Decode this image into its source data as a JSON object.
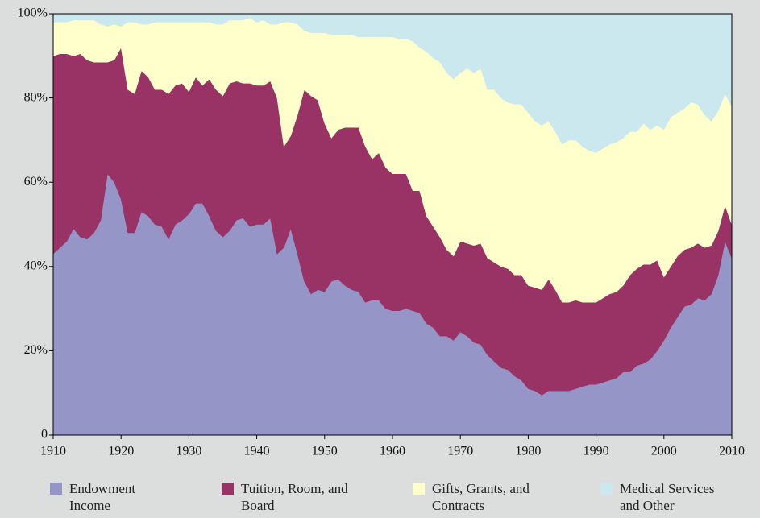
{
  "chart_data": {
    "type": "stacked_area",
    "x": [
      1910,
      1911,
      1912,
      1913,
      1914,
      1915,
      1916,
      1917,
      1918,
      1919,
      1920,
      1921,
      1922,
      1923,
      1924,
      1925,
      1926,
      1927,
      1928,
      1929,
      1930,
      1931,
      1932,
      1933,
      1934,
      1935,
      1936,
      1937,
      1938,
      1939,
      1940,
      1941,
      1942,
      1943,
      1944,
      1945,
      1946,
      1947,
      1948,
      1949,
      1950,
      1951,
      1952,
      1953,
      1954,
      1955,
      1956,
      1957,
      1958,
      1959,
      1960,
      1961,
      1962,
      1963,
      1964,
      1965,
      1966,
      1967,
      1968,
      1969,
      1970,
      1971,
      1972,
      1973,
      1974,
      1975,
      1976,
      1977,
      1978,
      1979,
      1980,
      1981,
      1982,
      1983,
      1984,
      1985,
      1986,
      1987,
      1988,
      1989,
      1990,
      1991,
      1992,
      1993,
      1994,
      1995,
      1996,
      1997,
      1998,
      1999,
      2000,
      2001,
      2002,
      2003,
      2004,
      2005,
      2006,
      2007,
      2008,
      2009,
      2010
    ],
    "series": [
      {
        "name": "Endowment Income",
        "color": "#9595c7",
        "values": [
          43,
          44.5,
          46,
          49,
          47,
          46.5,
          48,
          51,
          62,
          60,
          56,
          48,
          48,
          53,
          52,
          50,
          49.5,
          46.5,
          50,
          51,
          52.5,
          55,
          55,
          52,
          48.5,
          47,
          48.5,
          51,
          51.5,
          49.5,
          50,
          50,
          51.5,
          43,
          44.5,
          49,
          43,
          36.5,
          33.5,
          34.5,
          34,
          36.5,
          37,
          35.5,
          34.5,
          34,
          31.5,
          32,
          32,
          30,
          29.5,
          29.5,
          30,
          29.5,
          29,
          26.5,
          25.5,
          23.5,
          23.5,
          22.5,
          24.5,
          23.5,
          22,
          21.5,
          19,
          17.5,
          16,
          15.5,
          14,
          13,
          11,
          10.5,
          9.5,
          10.5,
          10.5,
          10.5,
          10.5,
          11,
          11.5,
          12,
          12,
          12.5,
          13,
          13.5,
          15,
          15,
          16.5,
          17,
          18,
          20,
          22.5,
          25.5,
          28,
          30.5,
          31,
          32.5,
          32,
          33.5,
          38,
          46,
          42
        ]
      },
      {
        "name": "Tuition, Room, and Board",
        "color": "#993366",
        "values": [
          47,
          46,
          44.5,
          41,
          43.5,
          42.5,
          40.5,
          37.5,
          26.5,
          29,
          36,
          34,
          33,
          33.5,
          33,
          32,
          32.5,
          34.5,
          33,
          32.5,
          29,
          30,
          28,
          32.5,
          33.5,
          33.5,
          35,
          33,
          32,
          34,
          33,
          33,
          32.5,
          37,
          24,
          22,
          33,
          45.5,
          47,
          45,
          40,
          34,
          35.5,
          37.5,
          38.5,
          39,
          37,
          33.5,
          35,
          33.5,
          32.5,
          32.5,
          32,
          28.5,
          29,
          25.5,
          24,
          23.5,
          20.5,
          20,
          21.5,
          22,
          23,
          24,
          23,
          23.5,
          24,
          24,
          24,
          25,
          24.5,
          24.5,
          25,
          26.5,
          24,
          21,
          21,
          21,
          20,
          19.5,
          19.5,
          20,
          20.5,
          20.5,
          20.5,
          23,
          23,
          23.5,
          22.5,
          21.5,
          15,
          14.5,
          14.5,
          13.5,
          13.5,
          13,
          12.5,
          11.5,
          10.5,
          8.5,
          8
        ]
      },
      {
        "name": "Gifts, Grants, and Contracts",
        "color": "#ffffcc",
        "values": [
          8,
          7.5,
          7.5,
          8.5,
          8,
          9.5,
          10,
          9,
          8.5,
          8.5,
          5,
          16,
          17,
          11,
          12.5,
          16,
          16,
          17,
          15,
          14.5,
          16.5,
          13,
          15,
          13.5,
          15.5,
          17,
          15,
          14.5,
          15,
          15.5,
          15,
          15.5,
          13.5,
          17.5,
          29.5,
          27,
          21.5,
          14,
          15,
          16,
          21.5,
          24.5,
          22.5,
          22,
          22,
          21.5,
          26,
          29,
          27.5,
          31,
          32.5,
          32,
          32,
          35.5,
          34,
          39,
          40,
          41.5,
          42,
          42,
          40,
          41.5,
          41,
          41.5,
          40,
          41,
          40,
          39.5,
          40.5,
          40.5,
          41,
          39.5,
          39,
          37.5,
          37.5,
          37.5,
          38.5,
          38,
          37,
          36,
          35.5,
          35.5,
          35.5,
          35.5,
          35,
          34,
          32.5,
          33.5,
          32,
          32,
          35,
          35.5,
          34,
          33.5,
          34.5,
          33,
          31.5,
          29.5,
          28.5,
          26.5,
          28
        ]
      },
      {
        "name": "Medical Services and Other",
        "color": "#cce8ef",
        "values": [
          2,
          2,
          2,
          1.5,
          1.5,
          1.5,
          1.5,
          2.5,
          3,
          2.5,
          3,
          2,
          2,
          2.5,
          2.5,
          2,
          2,
          2,
          2,
          2,
          2,
          2,
          2,
          2,
          2.5,
          2.5,
          1.5,
          1.5,
          1.5,
          1,
          2,
          1.5,
          2.5,
          2.5,
          2,
          2,
          2.5,
          4,
          4.5,
          4.5,
          4.5,
          5,
          5,
          5,
          5,
          5.5,
          5.5,
          5.5,
          5.5,
          5.5,
          5.5,
          6,
          6,
          6.5,
          8,
          9,
          10.5,
          11.5,
          14,
          15.5,
          14,
          13,
          14,
          13,
          18,
          18,
          20,
          21,
          21.5,
          21.5,
          23.5,
          25.5,
          26.5,
          25.5,
          28,
          31,
          30,
          30,
          31.5,
          32.5,
          33,
          32,
          31,
          30.5,
          29.5,
          28,
          28,
          26,
          27.5,
          26.5,
          27.5,
          24.5,
          23.5,
          22.5,
          21,
          21.5,
          24,
          25.5,
          23,
          19,
          22
        ]
      }
    ],
    "xlim": [
      1910,
      2010
    ],
    "xticks": [
      1910,
      1920,
      1930,
      1940,
      1950,
      1960,
      1970,
      1980,
      1990,
      2000,
      2010
    ],
    "ylim": [
      0,
      100
    ],
    "yticks": [
      0,
      {
        "value": 20,
        "label": "20%"
      },
      {
        "value": 40,
        "label": "40%"
      },
      {
        "value": 60,
        "label": "60%"
      },
      {
        "value": 80,
        "label": "80%"
      },
      {
        "value": 100,
        "label": "100%"
      }
    ],
    "legend": "bottom"
  }
}
